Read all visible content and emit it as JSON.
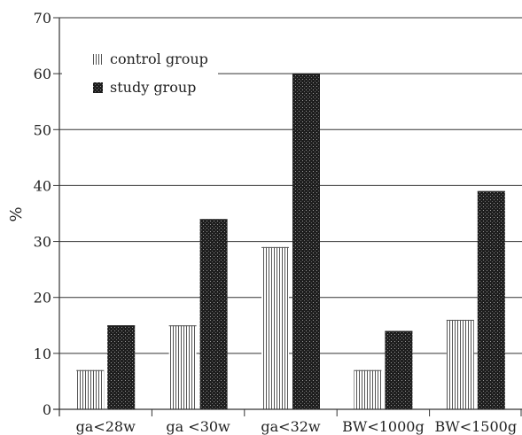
{
  "chart_data": {
    "type": "bar",
    "categories": [
      "ga<28w",
      "ga <30w",
      "ga<32w",
      "BW<1000g",
      "BW<1500g"
    ],
    "series": [
      {
        "name": "control group",
        "values": [
          7,
          15,
          29,
          7,
          16
        ],
        "pattern": "vertical-stripes"
      },
      {
        "name": "study group",
        "values": [
          15,
          34,
          60,
          14,
          39
        ],
        "pattern": "dotted-dark"
      }
    ],
    "ylabel": "%",
    "xlabel": "",
    "ylim": [
      0,
      70
    ],
    "yticks": [
      0,
      10,
      20,
      30,
      40,
      50,
      60,
      70
    ],
    "grid": true,
    "legend_position": "top-left",
    "colors": {
      "axis": "#333333",
      "grid": "#333333",
      "control_stroke": "#555555",
      "study_fill": "#1e1e1e"
    }
  }
}
